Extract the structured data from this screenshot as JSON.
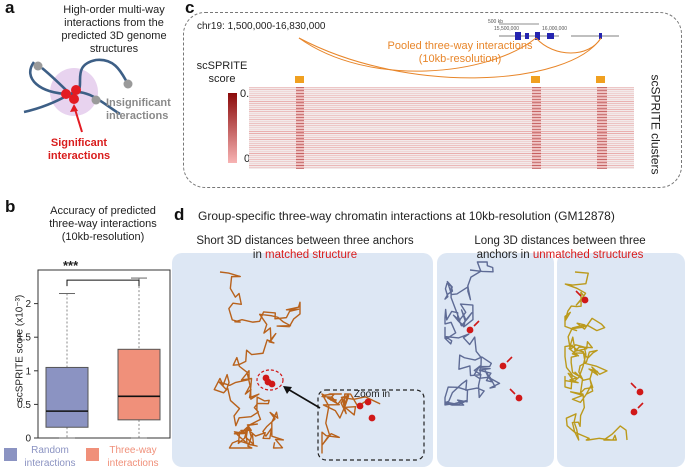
{
  "panels": {
    "a": {
      "label": "a",
      "title_lines": [
        "High-order multi-way",
        "interactions from the",
        "predicted 3D genome",
        "structures"
      ],
      "insignificant": [
        "Insignificant",
        "interactions"
      ],
      "significant": [
        "Significant",
        "interactions"
      ],
      "colors": {
        "chain": "#3d5f86",
        "anchor": "#e31b23",
        "end": "#9a9a9a",
        "halo": "#e8d3ef"
      }
    },
    "b": {
      "label": "b",
      "title_lines": [
        "Accuracy of predicted",
        "three-way interactions",
        "(10kb-resolution)"
      ],
      "significance": "***",
      "ylabel": "scSPRITE score (x10⁻³)",
      "legend": [
        {
          "lines": [
            "Random",
            "interactions"
          ],
          "color": "#8b93c2",
          "text_color": "#8b93c2"
        },
        {
          "lines": [
            "Three-way",
            "interactions"
          ],
          "color": "#f0907a",
          "text_color": "#f0907a"
        }
      ]
    },
    "c": {
      "label": "c",
      "region": "chr19: 1,500,000-16,830,000",
      "pooled": [
        "Pooled three-way interactions",
        "(10kb-resolution)"
      ],
      "score_label": [
        "scSPRITE",
        "score"
      ],
      "score_max": "0.1",
      "score_min": "0",
      "clusters_label": "scSPRITE clusters",
      "ruler_left": "500 kb",
      "ruler_mid": "15,500,000",
      "ruler_right": "16,000,000",
      "colors": {
        "heat_max": "#8b0a0a",
        "heat_min": "#f7b3b3",
        "anchor": "#f0a020",
        "arc": "#e8862a"
      }
    },
    "d": {
      "label": "d",
      "title": "Group-specific three-way chromatin interactions at 10kb-resolution (GM12878)",
      "left_caption": [
        "Short 3D distances between three anchors",
        "in "
      ],
      "left_caption_red": "matched structure",
      "zoom": "Zoom in",
      "right_caption": [
        "Long 3D distances between three",
        "anchors in "
      ],
      "right_caption_red": "unmatched structures",
      "colors": {
        "panel_bg": "#dde7f4",
        "matched": "#b8621c",
        "unmatched1": "#5e6b95",
        "unmatched2": "#bb9a1c",
        "anchor": "#d01818"
      }
    }
  },
  "chart_data": {
    "type": "box",
    "title": "Accuracy of predicted three-way interactions (10kb-resolution)",
    "xlabel": "",
    "ylabel": "scSPRITE score (x10⁻³)",
    "ylim": [
      0,
      2.5
    ],
    "yticks": [
      0,
      0.5,
      1,
      1.5,
      2
    ],
    "series": [
      {
        "name": "Random interactions",
        "whisker_low": 0.0,
        "q1": 0.16,
        "median": 0.4,
        "q3": 1.05,
        "whisker_high": 2.15
      },
      {
        "name": "Three-way interactions",
        "whisker_low": 0.0,
        "q1": 0.27,
        "median": 0.62,
        "q3": 1.32,
        "whisker_high": 2.38
      }
    ],
    "significance": "***"
  }
}
